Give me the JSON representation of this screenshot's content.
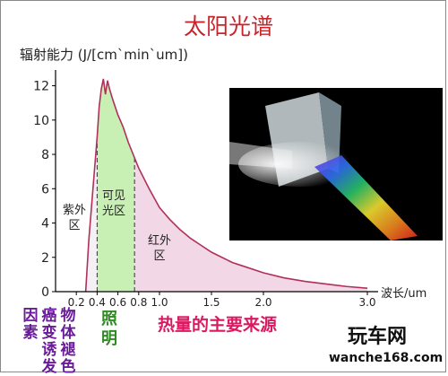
{
  "title": "太阳光谱",
  "ylabel": "辐射能力  (J/[cm`min`um])",
  "x_unit_label": "波长/um",
  "region_labels": {
    "uv": "紫外区",
    "visible": "可见光区",
    "ir": "红外区"
  },
  "bottom_captions": {
    "uv_effects": [
      "因素",
      "癌变诱发",
      "物体褪色"
    ],
    "visible_effect": "照明",
    "ir_effect": "热量的主要来源"
  },
  "watermark": {
    "name": "玩车网",
    "url": "wanche168.com"
  },
  "colors": {
    "title": "#c8242c",
    "curve": "#b0305a",
    "ir_fill": "#f2d8e6",
    "visible_fill": "#c9f0b4",
    "uv_fill": "#f5f0f5",
    "axis": "#000000",
    "uv_text": "#6a1b9a",
    "visible_text": "#2e8b22",
    "ir_text": "#d81b60"
  },
  "chart_data": {
    "type": "area",
    "title": "太阳光谱",
    "ylabel": "辐射能力  (J/[cm`min`um])",
    "xlabel": "波长/um",
    "xlim": [
      0,
      3.0
    ],
    "ylim": [
      0,
      12.5
    ],
    "x_ticks": [
      0.2,
      0.4,
      0.6,
      0.8,
      1.0,
      1.5,
      2.0,
      3.0
    ],
    "x_tick_labels": [
      "0.2",
      "0.4",
      "0.6",
      "0.8",
      "1.0",
      "1.5",
      "2.0",
      "3.0"
    ],
    "y_ticks": [
      0,
      2,
      4,
      6,
      8,
      10,
      12
    ],
    "y_tick_labels": [
      "0",
      "2",
      "4",
      "6",
      "8",
      "10",
      "12"
    ],
    "regions": [
      {
        "label": "紫外区",
        "x_start": 0.29,
        "x_end": 0.4
      },
      {
        "label": "可见光区",
        "x_start": 0.4,
        "x_end": 0.76
      },
      {
        "label": "红外区",
        "x_start": 0.76,
        "x_end": 3.0
      }
    ],
    "series": [
      {
        "x": [
          0.29,
          0.3,
          0.32,
          0.34,
          0.36,
          0.38,
          0.4,
          0.42,
          0.44,
          0.46,
          0.48,
          0.5,
          0.52,
          0.55,
          0.6,
          0.65,
          0.7,
          0.76,
          0.8,
          0.9,
          1.0,
          1.1,
          1.2,
          1.3,
          1.4,
          1.5,
          1.6,
          1.7,
          1.8,
          2.0,
          2.2,
          2.4,
          2.6,
          2.8,
          3.0
        ],
        "values": [
          0,
          1.0,
          3.0,
          4.5,
          6.0,
          7.5,
          9.0,
          10.8,
          11.8,
          12.4,
          11.5,
          12.3,
          11.8,
          11.2,
          10.3,
          9.6,
          8.7,
          7.8,
          7.2,
          6.0,
          4.9,
          4.2,
          3.6,
          3.1,
          2.7,
          2.3,
          2.0,
          1.7,
          1.5,
          1.1,
          0.8,
          0.6,
          0.45,
          0.3,
          0.2
        ]
      }
    ]
  }
}
